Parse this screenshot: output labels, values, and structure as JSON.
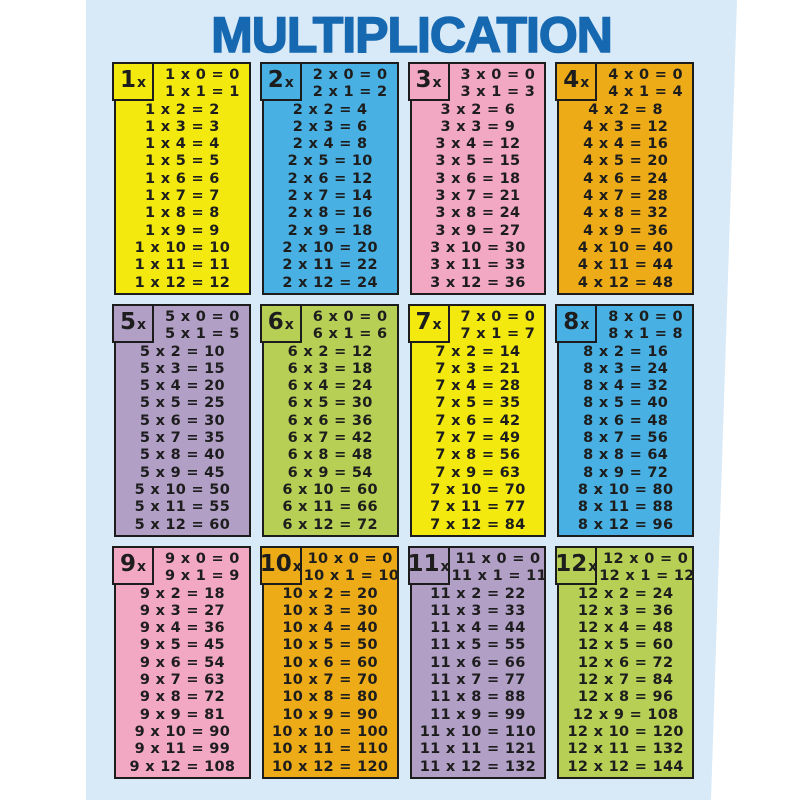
{
  "title": "MULTIPLICATION",
  "colors": {
    "page_background": "#ffffff",
    "card_background": "#d8e9f8",
    "title_blue": "#1668b0",
    "panel_border": "#1c1c1c",
    "text": "#1d1d1d",
    "panel_yellow": "#f3e90e",
    "panel_blue": "#48b0e2",
    "panel_pink": "#f2a7c3",
    "panel_gold": "#ecab17",
    "panel_purple": "#b19fc6",
    "panel_green": "#b8cf55"
  },
  "tables": [
    {
      "label_number": "1",
      "label_x": "x",
      "color": "#f3e90e",
      "equations": [
        "1 x 0 = 0",
        "1 x 1 = 1",
        "1 x 2 = 2",
        "1 x 3 = 3",
        "1 x 4 = 4",
        "1 x 5 = 5",
        "1 x 6 = 6",
        "1 x 7 = 7",
        "1 x 8 = 8",
        "1 x 9 = 9",
        "1 x 10 = 10",
        "1 x 11 = 11",
        "1 x 12 = 12"
      ]
    },
    {
      "label_number": "2",
      "label_x": "x",
      "color": "#48b0e2",
      "equations": [
        "2 x 0 = 0",
        "2 x 1 = 2",
        "2 x 2 = 4",
        "2 x 3 = 6",
        "2 x 4 = 8",
        "2 x 5 = 10",
        "2 x 6 = 12",
        "2 x 7 = 14",
        "2 x 8 = 16",
        "2 x 9 = 18",
        "2 x 10 = 20",
        "2 x 11 = 22",
        "2 x 12 = 24"
      ]
    },
    {
      "label_number": "3",
      "label_x": "x",
      "color": "#f2a7c3",
      "equations": [
        "3 x 0 = 0",
        "3 x 1 = 3",
        "3 x 2 = 6",
        "3 x 3 = 9",
        "3 x 4 = 12",
        "3 x 5 = 15",
        "3 x 6 = 18",
        "3 x 7 = 21",
        "3 x 8 = 24",
        "3 x 9 = 27",
        "3 x 10 = 30",
        "3 x 11 = 33",
        "3 x 12 = 36"
      ]
    },
    {
      "label_number": "4",
      "label_x": "x",
      "color": "#ecab17",
      "equations": [
        "4 x 0 = 0",
        "4 x 1 = 4",
        "4 x 2 = 8",
        "4 x 3 = 12",
        "4 x 4 = 16",
        "4 x 5 = 20",
        "4 x 6 = 24",
        "4 x 7 = 28",
        "4 x 8 = 32",
        "4 x 9 = 36",
        "4 x 10 = 40",
        "4 x 11 = 44",
        "4 x 12 = 48"
      ]
    },
    {
      "label_number": "5",
      "label_x": "x",
      "color": "#b19fc6",
      "equations": [
        "5 x 0 = 0",
        "5 x 1 = 5",
        "5 x 2 = 10",
        "5 x 3 = 15",
        "5 x 4 = 20",
        "5 x 5 = 25",
        "5 x 6 = 30",
        "5 x 7 = 35",
        "5 x 8 = 40",
        "5 x 9 = 45",
        "5 x 10 = 50",
        "5 x 11 = 55",
        "5 x 12 = 60"
      ]
    },
    {
      "label_number": "6",
      "label_x": "x",
      "color": "#b8cf55",
      "equations": [
        "6 x 0 = 0",
        "6 x 1 = 6",
        "6 x 2 = 12",
        "6 x 3 = 18",
        "6 x 4 = 24",
        "6 x 5 = 30",
        "6 x 6 = 36",
        "6 x 7 = 42",
        "6 x 8 = 48",
        "6 x 9 = 54",
        "6 x 10 = 60",
        "6 x 11 = 66",
        "6 x 12 = 72"
      ]
    },
    {
      "label_number": "7",
      "label_x": "x",
      "color": "#f3e90e",
      "equations": [
        "7 x 0 = 0",
        "7 x 1 = 7",
        "7 x 2 = 14",
        "7 x 3 = 21",
        "7 x 4 = 28",
        "7 x 5 = 35",
        "7 x 6 = 42",
        "7 x 7 = 49",
        "7 x 8 = 56",
        "7 x 9 = 63",
        "7 x 10 = 70",
        "7 x 11 = 77",
        "7 x 12 = 84"
      ]
    },
    {
      "label_number": "8",
      "label_x": "x",
      "color": "#48b0e2",
      "equations": [
        "8 x 0 = 0",
        "8 x 1 = 8",
        "8 x 2 = 16",
        "8 x 3 = 24",
        "8 x 4 = 32",
        "8 x 5 = 40",
        "8 x 6 = 48",
        "8 x 7 = 56",
        "8 x 8 = 64",
        "8 x 9 = 72",
        "8 x 10 = 80",
        "8 x 11 = 88",
        "8 x 12 = 96"
      ]
    },
    {
      "label_number": "9",
      "label_x": "x",
      "color": "#f2a7c3",
      "equations": [
        "9 x 0 = 0",
        "9 x 1 = 9",
        "9 x 2 = 18",
        "9 x 3 = 27",
        "9 x 4 = 36",
        "9 x 5 = 45",
        "9 x 6 = 54",
        "9 x 7 = 63",
        "9 x 8 = 72",
        "9 x 9 = 81",
        "9 x 10 = 90",
        "9 x 11 = 99",
        "9 x 12 = 108"
      ]
    },
    {
      "label_number": "10",
      "label_x": "x",
      "color": "#ecab17",
      "equations": [
        "10 x 0 = 0",
        "10 x 1 = 10",
        "10 x 2 = 20",
        "10 x 3 = 30",
        "10 x 4 = 40",
        "10 x 5 = 50",
        "10 x 6 = 60",
        "10 x 7 = 70",
        "10 x 8 = 80",
        "10 x 9 = 90",
        "10 x 10 = 100",
        "10 x 11 = 110",
        "10 x 12 = 120"
      ]
    },
    {
      "label_number": "11",
      "label_x": "x",
      "color": "#b19fc6",
      "equations": [
        "11 x 0 = 0",
        "11 x 1 = 11",
        "11 x 2 = 22",
        "11 x 3 = 33",
        "11 x 4 = 44",
        "11 x 5 = 55",
        "11 x 6 = 66",
        "11 x 7 = 77",
        "11 x 8 = 88",
        "11 x 9 = 99",
        "11 x 10 = 110",
        "11 x 11 = 121",
        "11 x 12 = 132"
      ]
    },
    {
      "label_number": "12",
      "label_x": "x",
      "color": "#b8cf55",
      "equations": [
        "12 x 0 = 0",
        "12 x 1 = 12",
        "12 x 2 = 24",
        "12 x 3 = 36",
        "12 x 4 = 48",
        "12 x 5 = 60",
        "12 x 6 = 72",
        "12 x 7 = 84",
        "12 x 8 = 96",
        "12 x 9 = 108",
        "12 x 10 = 120",
        "12 x 11 = 132",
        "12 x 12 = 144"
      ]
    }
  ]
}
